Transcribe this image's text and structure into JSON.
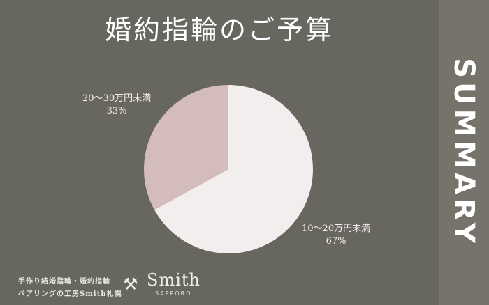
{
  "side_label": "SUMMARY",
  "chart_data": {
    "type": "pie",
    "title": "婚約指輪のご予算",
    "slices": [
      {
        "label": "10〜20万円未満",
        "value": 67,
        "value_label": "67%",
        "color": "#f3eeee"
      },
      {
        "label": "20〜30万円未満",
        "value": 33,
        "value_label": "33%",
        "color": "#d5bcbc"
      }
    ]
  },
  "footer": {
    "line1": "手作り結婚指輪・婚約指輪",
    "line2": "ペアリングの工房Smith札幌",
    "brand": "Smith",
    "brand_sub": "SAPPORO"
  },
  "colors": {
    "background": "#67665f",
    "side_panel": "#76746a"
  }
}
